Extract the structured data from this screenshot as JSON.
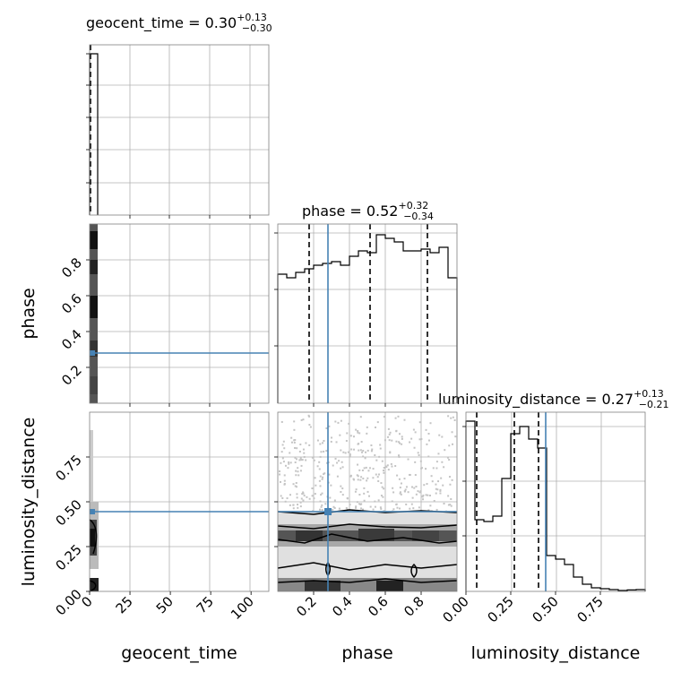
{
  "chart_data": {
    "type": "corner",
    "parameters": [
      "geocent_time",
      "phase",
      "luminosity_distance"
    ],
    "titles": [
      {
        "param": "geocent_time",
        "prefix": "geocent_time = ",
        "median": "0.30",
        "plus": "+0.13",
        "minus": "−0.30"
      },
      {
        "param": "phase",
        "prefix": "phase = ",
        "median": "0.52",
        "plus": "+0.32",
        "minus": "−0.34"
      },
      {
        "param": "luminosity_distance",
        "prefix": "luminosity_distance = ",
        "median": "0.27",
        "plus": "+0.13",
        "minus": "−0.21"
      }
    ],
    "axis_labels": [
      "geocent_time",
      "phase",
      "luminosity_distance"
    ],
    "ranges": {
      "geocent_time": [
        0,
        111
      ],
      "phase": [
        0,
        1
      ],
      "luminosity_distance": [
        0,
        1
      ]
    },
    "ticks": {
      "geocent_time": [
        "0",
        "25",
        "50",
        "75",
        "100"
      ],
      "phase": [
        "0.2",
        "0.4",
        "0.6",
        "0.8"
      ],
      "luminosity_distance": [
        "0.00",
        "0.25",
        "0.50",
        "0.75"
      ],
      "luminosity_distance_ylabels": [
        "0.00",
        "0.25",
        "0.50",
        "0.75"
      ]
    },
    "tick_values": {
      "geocent_time": [
        0,
        25,
        50,
        75,
        100
      ],
      "phase": [
        0.2,
        0.4,
        0.6,
        0.8
      ],
      "luminosity_distance": [
        0,
        0.25,
        0.5,
        0.75
      ]
    },
    "truths": {
      "geocent_time": null,
      "phase": 0.28,
      "luminosity_distance": 0.445
    },
    "quantiles": {
      "geocent_time": [
        0.0,
        0.3,
        0.43
      ],
      "phase": [
        0.18,
        0.52,
        0.84
      ],
      "luminosity_distance": [
        0.06,
        0.27,
        0.4
      ]
    },
    "hist_geocent_time": {
      "edges": [
        0,
        5
      ],
      "counts": [
        1
      ]
    },
    "hist_phase": {
      "edges": [
        0,
        0.05,
        0.1,
        0.15,
        0.2,
        0.25,
        0.3,
        0.35,
        0.4,
        0.45,
        0.5,
        0.55,
        0.6,
        0.65,
        0.7,
        0.75,
        0.8,
        0.85,
        0.9,
        0.95,
        1.0
      ],
      "counts": [
        0.72,
        0.7,
        0.73,
        0.75,
        0.77,
        0.78,
        0.79,
        0.77,
        0.82,
        0.85,
        0.84,
        0.94,
        0.92,
        0.9,
        0.85,
        0.85,
        0.86,
        0.84,
        0.87,
        0.7
      ]
    },
    "hist_luminosity_distance": {
      "edges": [
        0,
        0.05,
        0.1,
        0.15,
        0.2,
        0.25,
        0.3,
        0.35,
        0.4,
        0.45,
        0.5,
        0.55,
        0.6,
        0.65,
        0.7,
        0.75,
        0.8,
        0.85,
        0.9,
        0.95,
        1.0
      ],
      "counts": [
        0.95,
        0.4,
        0.39,
        0.42,
        0.63,
        0.88,
        0.92,
        0.85,
        0.8,
        0.2,
        0.18,
        0.15,
        0.08,
        0.04,
        0.02,
        0.015,
        0.01,
        0.005,
        0.008,
        0.01
      ]
    },
    "contours_phase_vs_luminosity_distance": [
      [
        [
          0,
          0.445
        ],
        [
          0.2,
          0.43
        ],
        [
          0.4,
          0.455
        ],
        [
          0.6,
          0.44
        ],
        [
          0.8,
          0.45
        ],
        [
          1.0,
          0.44
        ]
      ],
      [
        [
          0,
          0.365
        ],
        [
          0.2,
          0.35
        ],
        [
          0.4,
          0.375
        ],
        [
          0.6,
          0.36
        ],
        [
          0.8,
          0.355
        ],
        [
          1.0,
          0.37
        ]
      ],
      [
        [
          0,
          0.29
        ],
        [
          0.15,
          0.27
        ],
        [
          0.3,
          0.32
        ],
        [
          0.5,
          0.28
        ],
        [
          0.7,
          0.3
        ],
        [
          0.9,
          0.27
        ],
        [
          1.0,
          0.28
        ]
      ],
      [
        [
          0,
          0.13
        ],
        [
          0.2,
          0.16
        ],
        [
          0.4,
          0.12
        ],
        [
          0.6,
          0.15
        ],
        [
          0.8,
          0.13
        ],
        [
          1.0,
          0.15
        ]
      ],
      [
        [
          0,
          0.05
        ],
        [
          0.2,
          0.06
        ],
        [
          0.4,
          0.05
        ],
        [
          0.6,
          0.07
        ],
        [
          0.8,
          0.05
        ],
        [
          1.0,
          0.06
        ]
      ]
    ]
  }
}
